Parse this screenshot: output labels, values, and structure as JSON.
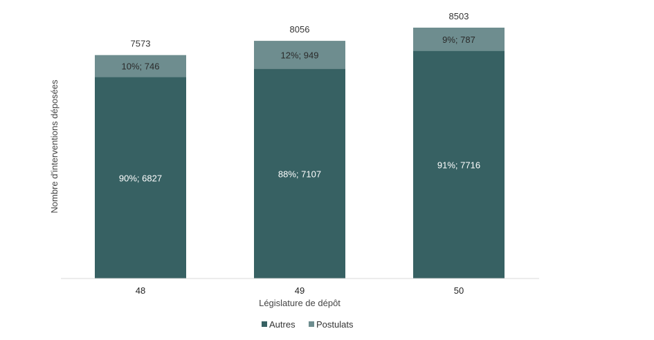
{
  "chart_data": {
    "type": "bar",
    "stacked": true,
    "xlabel": "Législature de dépôt",
    "ylabel": "Nombre d'interventions déposées",
    "categories": [
      "48",
      "49",
      "50"
    ],
    "series": [
      {
        "name": "Autres",
        "values": [
          6827,
          7107,
          7716
        ],
        "labels": [
          "90%; 6827",
          "88%; 7107",
          "91%; 7716"
        ],
        "color": "#376163"
      },
      {
        "name": "Postulats",
        "values": [
          746,
          949,
          787
        ],
        "labels": [
          "10%; 746",
          "12%; 949",
          "9%; 787"
        ],
        "color": "#6e8d8f"
      }
    ],
    "totals": [
      "7573",
      "8056",
      "8503"
    ],
    "ylim": [
      0,
      8503
    ],
    "grid": false,
    "legend_position": "bottom"
  }
}
